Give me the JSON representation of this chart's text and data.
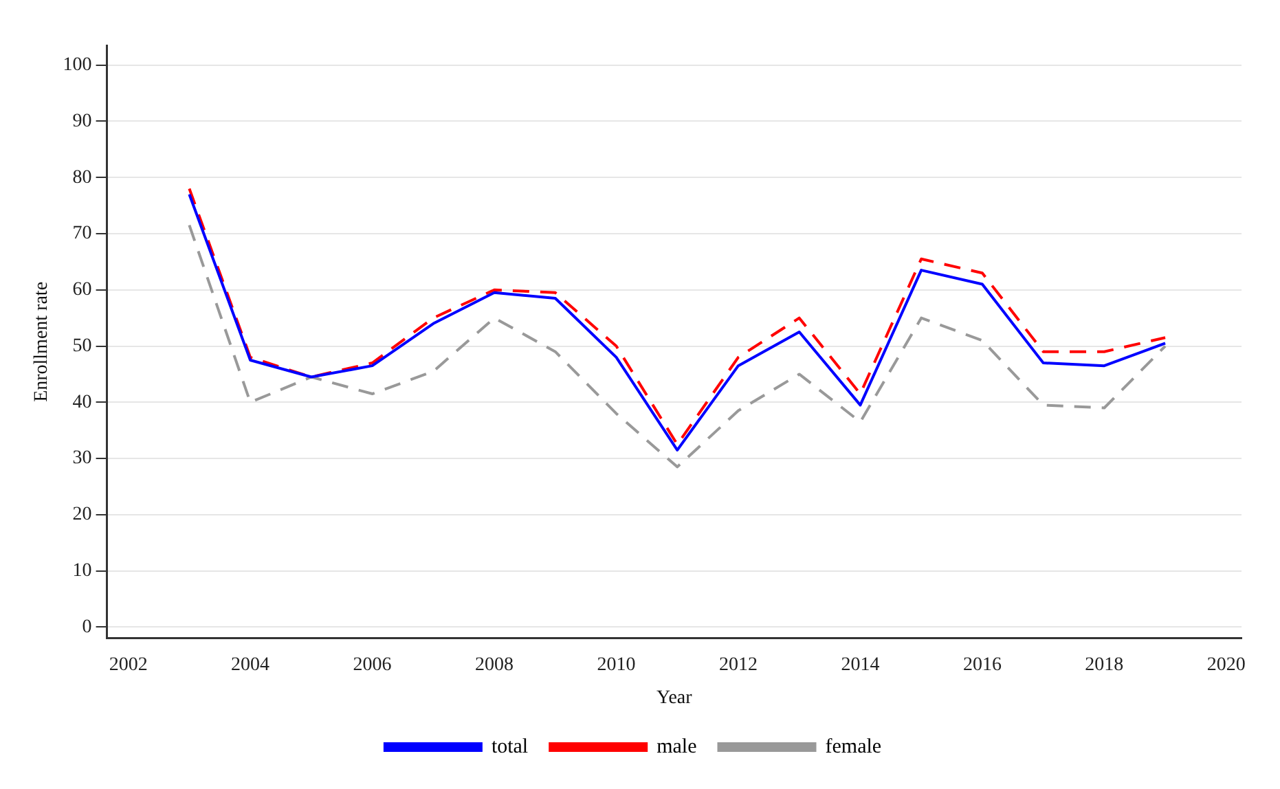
{
  "chart_data": {
    "type": "line",
    "xlabel": "Year",
    "ylabel": "Enrollment rate",
    "x": [
      2003,
      2004,
      2005,
      2006,
      2007,
      2008,
      2009,
      2010,
      2011,
      2012,
      2013,
      2014,
      2015,
      2016,
      2017,
      2018,
      2019
    ],
    "series": [
      {
        "name": "total",
        "color": "#0000ff",
        "line_style": "solid",
        "values": [
          77,
          47.5,
          44.5,
          46.5,
          54,
          59.5,
          58.5,
          48,
          31.5,
          46.5,
          52.5,
          39.5,
          63.5,
          61,
          47,
          46.5,
          50.5
        ]
      },
      {
        "name": "male",
        "color": "#ff0000",
        "line_style": "dashed",
        "values": [
          78,
          48,
          44.5,
          47,
          55,
          60,
          59.5,
          50,
          32.5,
          48,
          55,
          41.5,
          65.5,
          63,
          49,
          49,
          51.5
        ]
      },
      {
        "name": "female",
        "color": "#999999",
        "line_style": "dashed",
        "values": [
          71.5,
          40,
          44.5,
          41.5,
          45.5,
          55,
          49,
          38,
          28.5,
          38.5,
          45,
          36.5,
          55,
          51,
          39.5,
          39,
          50
        ]
      }
    ],
    "xlim": [
      2001.65,
      2020.25
    ],
    "xticks": [
      2002,
      2004,
      2006,
      2008,
      2010,
      2012,
      2014,
      2016,
      2018,
      2020
    ],
    "ylim": [
      -2,
      103.5
    ],
    "yticks": [
      0,
      10,
      20,
      30,
      40,
      50,
      60,
      70,
      80,
      90,
      100
    ],
    "grid": "y",
    "legend": "bottom",
    "marker": "none"
  }
}
